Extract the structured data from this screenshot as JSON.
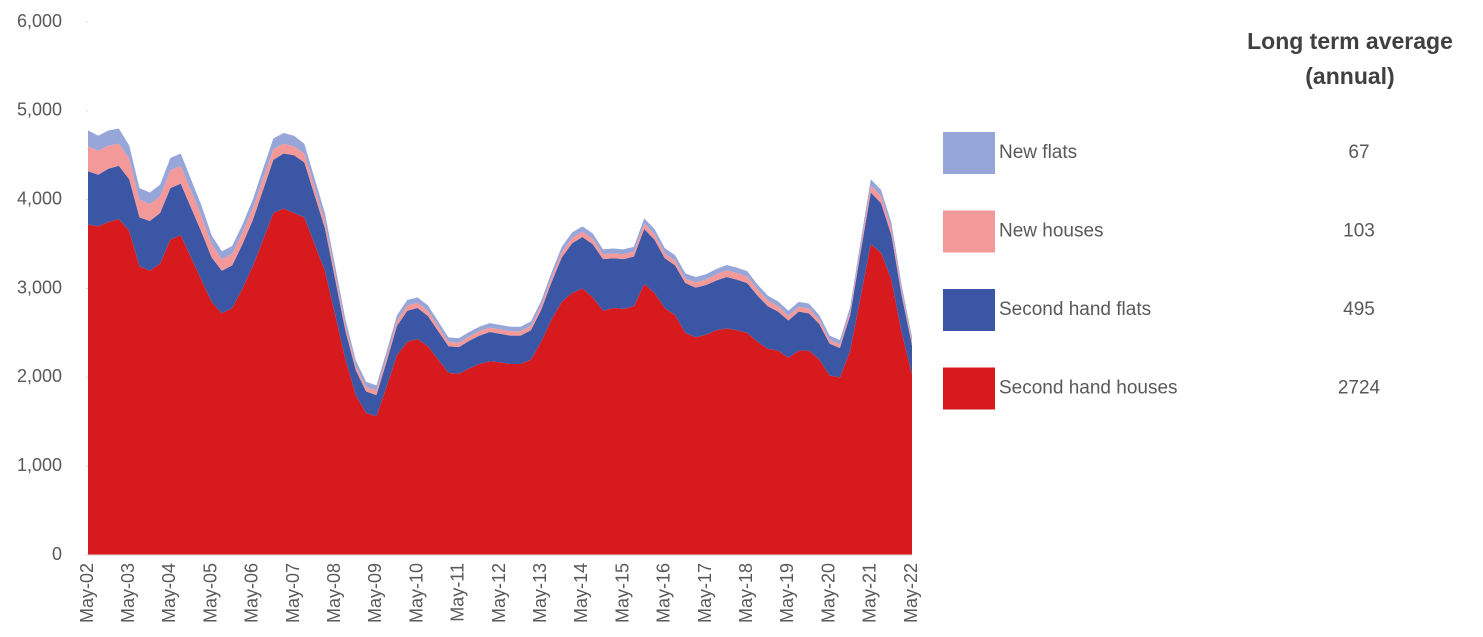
{
  "chart_data": {
    "type": "stacked-area",
    "legend_title": "Long term average (annual)",
    "categories": [
      "May-02",
      null,
      null,
      null,
      "May-03",
      null,
      null,
      null,
      "May-04",
      null,
      null,
      null,
      "May-05",
      null,
      null,
      null,
      "May-06",
      null,
      null,
      null,
      "May-07",
      null,
      null,
      null,
      "May-08",
      null,
      null,
      null,
      "May-09",
      null,
      null,
      null,
      "May-10",
      null,
      null,
      null,
      "May-11",
      null,
      null,
      null,
      "May-12",
      null,
      null,
      null,
      "May-13",
      null,
      null,
      null,
      "May-14",
      null,
      null,
      null,
      "May-15",
      null,
      null,
      null,
      "May-16",
      null,
      null,
      null,
      "May-17",
      null,
      null,
      null,
      "May-18",
      null,
      null,
      null,
      "May-19",
      null,
      null,
      null,
      "May-20",
      null,
      null,
      null,
      "May-21",
      null,
      null,
      null,
      "May-22"
    ],
    "series": [
      {
        "name": "Second hand houses",
        "color": "#d71a1d",
        "long_term_average": 2724,
        "values": [
          3720,
          3700,
          3750,
          3780,
          3650,
          3250,
          3200,
          3280,
          3550,
          3600,
          3350,
          3100,
          2850,
          2720,
          2780,
          3000,
          3250,
          3550,
          3850,
          3900,
          3850,
          3800,
          3500,
          3200,
          2700,
          2200,
          1800,
          1600,
          1560,
          1900,
          2250,
          2400,
          2430,
          2350,
          2200,
          2050,
          2040,
          2100,
          2150,
          2180,
          2170,
          2150,
          2150,
          2200,
          2400,
          2650,
          2850,
          2950,
          3000,
          2900,
          2750,
          2780,
          2770,
          2800,
          3050,
          2950,
          2780,
          2700,
          2500,
          2450,
          2480,
          2530,
          2550,
          2530,
          2500,
          2400,
          2320,
          2300,
          2220,
          2300,
          2300,
          2200,
          2020,
          2000,
          2300,
          2900,
          3500,
          3400,
          3100,
          2500,
          2030
        ]
      },
      {
        "name": "Second hand flats",
        "color": "#3b56a5",
        "long_term_average": 495,
        "values": [
          600,
          580,
          600,
          600,
          580,
          550,
          560,
          570,
          580,
          580,
          560,
          540,
          500,
          480,
          480,
          500,
          520,
          560,
          600,
          620,
          650,
          620,
          550,
          480,
          400,
          320,
          280,
          240,
          240,
          280,
          330,
          350,
          350,
          340,
          320,
          300,
          300,
          310,
          320,
          330,
          320,
          320,
          320,
          330,
          360,
          420,
          500,
          560,
          580,
          600,
          580,
          560,
          560,
          560,
          620,
          600,
          560,
          560,
          560,
          560,
          560,
          560,
          580,
          570,
          560,
          520,
          480,
          440,
          420,
          440,
          420,
          400,
          360,
          330,
          400,
          500,
          580,
          560,
          500,
          420,
          330
        ]
      },
      {
        "name": "New houses",
        "color": "#f4999a",
        "long_term_average": 103,
        "values": [
          280,
          270,
          260,
          250,
          230,
          200,
          190,
          190,
          200,
          200,
          190,
          180,
          150,
          130,
          130,
          130,
          130,
          130,
          120,
          110,
          100,
          100,
          90,
          80,
          70,
          60,
          50,
          50,
          50,
          55,
          60,
          60,
          60,
          60,
          55,
          50,
          50,
          50,
          50,
          50,
          50,
          50,
          50,
          50,
          50,
          55,
          60,
          60,
          60,
          60,
          55,
          55,
          55,
          55,
          60,
          60,
          55,
          55,
          50,
          60,
          60,
          70,
          75,
          75,
          75,
          70,
          65,
          60,
          55,
          55,
          55,
          50,
          40,
          40,
          45,
          60,
          80,
          80,
          75,
          60,
          40
        ]
      },
      {
        "name": "New flats",
        "color": "#97a6d8",
        "long_term_average": 67,
        "values": [
          180,
          170,
          170,
          170,
          150,
          130,
          130,
          130,
          140,
          140,
          130,
          120,
          100,
          90,
          90,
          90,
          100,
          110,
          120,
          120,
          120,
          110,
          100,
          90,
          80,
          70,
          60,
          60,
          60,
          60,
          60,
          60,
          60,
          60,
          55,
          50,
          50,
          50,
          50,
          50,
          50,
          50,
          50,
          50,
          50,
          55,
          60,
          60,
          60,
          60,
          55,
          55,
          55,
          55,
          60,
          60,
          60,
          60,
          60,
          60,
          60,
          60,
          60,
          60,
          60,
          55,
          55,
          55,
          55,
          55,
          55,
          50,
          50,
          50,
          50,
          60,
          70,
          70,
          65,
          55,
          50
        ]
      }
    ],
    "ylim": [
      0,
      6000
    ],
    "yticks": [
      0,
      {
        "value": 1000,
        "label": "1,000"
      },
      {
        "value": 2000,
        "label": "2,000"
      },
      {
        "value": 3000,
        "label": "3,000"
      },
      {
        "value": 4000,
        "label": "4,000"
      },
      {
        "value": 5000,
        "label": "5,000"
      },
      {
        "value": 6000,
        "label": "6,000"
      }
    ],
    "grid": false
  }
}
